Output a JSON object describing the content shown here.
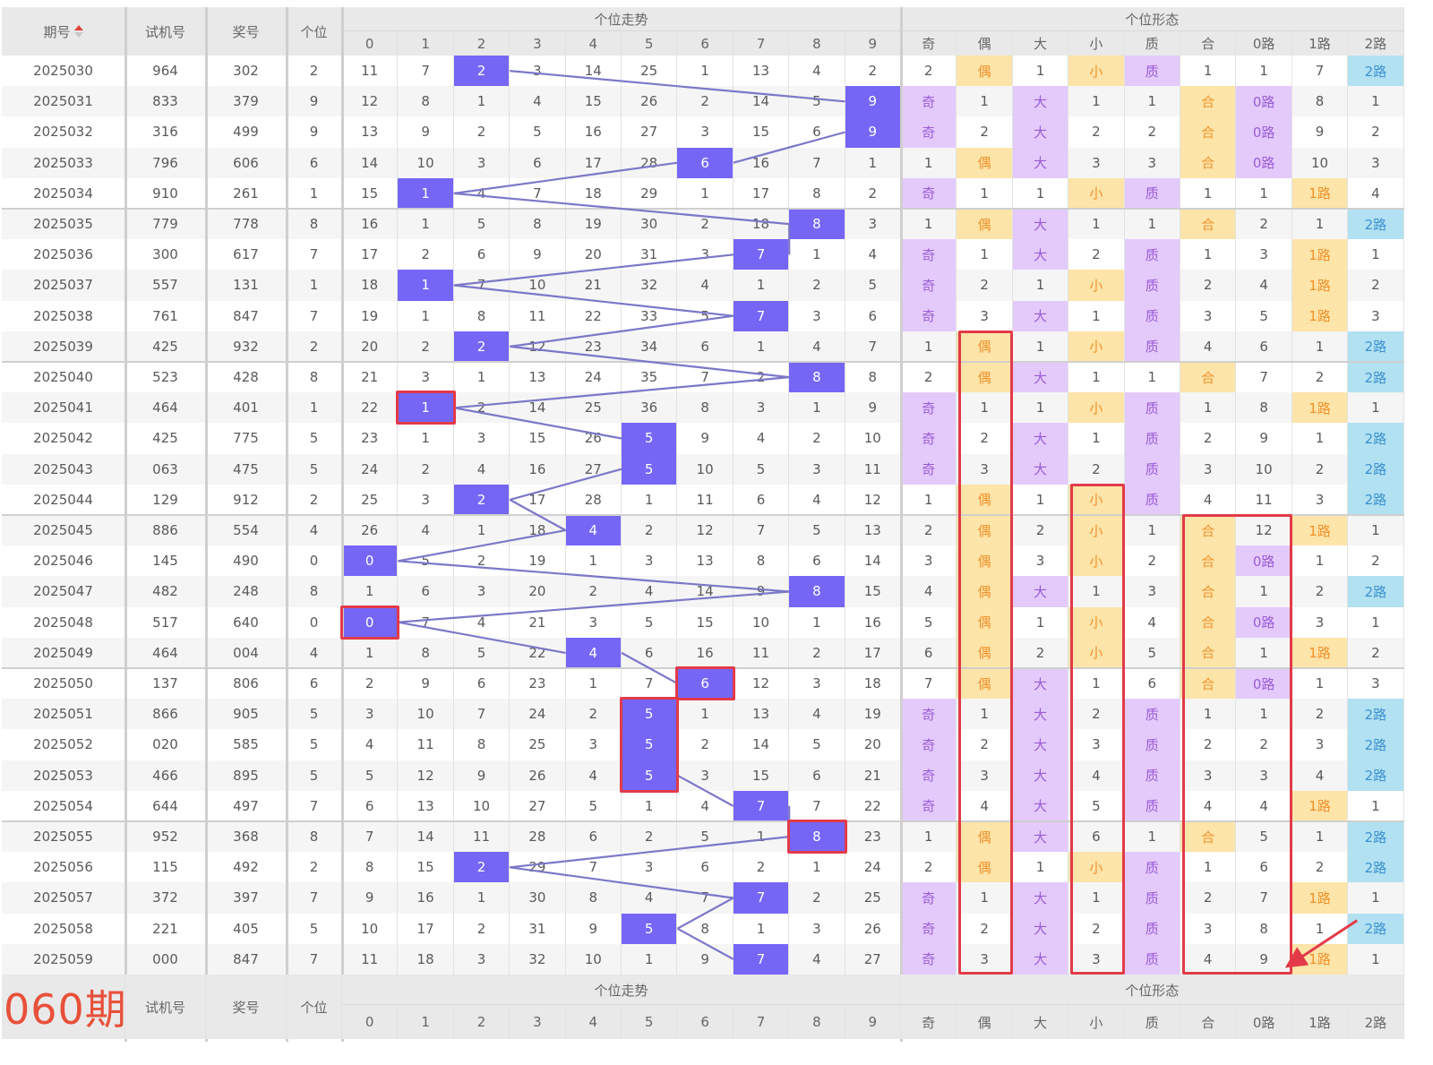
{
  "header": {
    "period_label": "期号",
    "trial_label": "试机号",
    "prize_label": "奖号",
    "unit_label": "个位",
    "trend_group": "个位走势",
    "form_group": "个位形态",
    "trend_cols": [
      "0",
      "1",
      "2",
      "3",
      "4",
      "5",
      "6",
      "7",
      "8",
      "9"
    ],
    "form_cols": [
      "奇",
      "偶",
      "大",
      "小",
      "质",
      "合",
      "0路",
      "1路",
      "2路"
    ],
    "sort_icon": "sort-ascending-icon"
  },
  "footer": {
    "next_period": "060期",
    "trial_label": "试机号",
    "prize_label": "奖号",
    "unit_label": "个位",
    "trend_group": "个位走势",
    "form_group": "个位形态",
    "trend_cols": [
      "0",
      "1",
      "2",
      "3",
      "4",
      "5",
      "6",
      "7",
      "8",
      "9"
    ],
    "form_cols": [
      "奇",
      "偶",
      "大",
      "小",
      "质",
      "合",
      "0路",
      "1路",
      "2路"
    ]
  },
  "colors": {
    "hit": "#7566f6",
    "trend_line": "#7b78c8",
    "annotation": "#e23a48",
    "form_col_colors": [
      "purple",
      "yellow",
      "purple",
      "yellow",
      "purple",
      "yellow",
      "purple",
      "yellow",
      "blue"
    ]
  },
  "rows": [
    {
      "period": "2025030",
      "trial": "964",
      "prize": "302",
      "unit": "2",
      "trend": [
        "11",
        "7",
        "2",
        "3",
        "14",
        "25",
        "1",
        "13",
        "4",
        "2"
      ],
      "form": [
        "2",
        "偶",
        "1",
        "小",
        "质",
        "1",
        "1",
        "7",
        "2路"
      ]
    },
    {
      "period": "2025031",
      "trial": "833",
      "prize": "379",
      "unit": "9",
      "trend": [
        "12",
        "8",
        "1",
        "4",
        "15",
        "26",
        "2",
        "14",
        "5",
        "9"
      ],
      "form": [
        "奇",
        "1",
        "大",
        "1",
        "1",
        "合",
        "0路",
        "8",
        "1"
      ]
    },
    {
      "period": "2025032",
      "trial": "316",
      "prize": "499",
      "unit": "9",
      "trend": [
        "13",
        "9",
        "2",
        "5",
        "16",
        "27",
        "3",
        "15",
        "6",
        "9"
      ],
      "form": [
        "奇",
        "2",
        "大",
        "2",
        "2",
        "合",
        "0路",
        "9",
        "2"
      ]
    },
    {
      "period": "2025033",
      "trial": "796",
      "prize": "606",
      "unit": "6",
      "trend": [
        "14",
        "10",
        "3",
        "6",
        "17",
        "28",
        "6",
        "16",
        "7",
        "1"
      ],
      "form": [
        "1",
        "偶",
        "大",
        "3",
        "3",
        "合",
        "0路",
        "10",
        "3"
      ]
    },
    {
      "period": "2025034",
      "trial": "910",
      "prize": "261",
      "unit": "1",
      "trend": [
        "15",
        "1",
        "4",
        "7",
        "18",
        "29",
        "1",
        "17",
        "8",
        "2"
      ],
      "form": [
        "奇",
        "1",
        "1",
        "小",
        "质",
        "1",
        "1",
        "1路",
        "4"
      ]
    },
    {
      "period": "2025035",
      "trial": "779",
      "prize": "778",
      "unit": "8",
      "trend": [
        "16",
        "1",
        "5",
        "8",
        "19",
        "30",
        "2",
        "18",
        "8",
        "3"
      ],
      "form": [
        "1",
        "偶",
        "大",
        "1",
        "1",
        "合",
        "2",
        "1",
        "2路"
      ]
    },
    {
      "period": "2025036",
      "trial": "300",
      "prize": "617",
      "unit": "7",
      "trend": [
        "17",
        "2",
        "6",
        "9",
        "20",
        "31",
        "3",
        "7",
        "1",
        "4"
      ],
      "form": [
        "奇",
        "1",
        "大",
        "2",
        "质",
        "1",
        "3",
        "1路",
        "1"
      ]
    },
    {
      "period": "2025037",
      "trial": "557",
      "prize": "131",
      "unit": "1",
      "trend": [
        "18",
        "1",
        "7",
        "10",
        "21",
        "32",
        "4",
        "1",
        "2",
        "5"
      ],
      "form": [
        "奇",
        "2",
        "1",
        "小",
        "质",
        "2",
        "4",
        "1路",
        "2"
      ]
    },
    {
      "period": "2025038",
      "trial": "761",
      "prize": "847",
      "unit": "7",
      "trend": [
        "19",
        "1",
        "8",
        "11",
        "22",
        "33",
        "5",
        "7",
        "3",
        "6"
      ],
      "form": [
        "奇",
        "3",
        "大",
        "1",
        "质",
        "3",
        "5",
        "1路",
        "3"
      ]
    },
    {
      "period": "2025039",
      "trial": "425",
      "prize": "932",
      "unit": "2",
      "trend": [
        "20",
        "2",
        "2",
        "12",
        "23",
        "34",
        "6",
        "1",
        "4",
        "7"
      ],
      "form": [
        "1",
        "偶",
        "1",
        "小",
        "质",
        "4",
        "6",
        "1",
        "2路"
      ]
    },
    {
      "period": "2025040",
      "trial": "523",
      "prize": "428",
      "unit": "8",
      "trend": [
        "21",
        "3",
        "1",
        "13",
        "24",
        "35",
        "7",
        "2",
        "8",
        "8"
      ],
      "form": [
        "2",
        "偶",
        "大",
        "1",
        "1",
        "合",
        "7",
        "2",
        "2路"
      ]
    },
    {
      "period": "2025041",
      "trial": "464",
      "prize": "401",
      "unit": "1",
      "trend": [
        "22",
        "1",
        "2",
        "14",
        "25",
        "36",
        "8",
        "3",
        "1",
        "9"
      ],
      "form": [
        "奇",
        "1",
        "1",
        "小",
        "质",
        "1",
        "8",
        "1路",
        "1"
      ]
    },
    {
      "period": "2025042",
      "trial": "425",
      "prize": "775",
      "unit": "5",
      "trend": [
        "23",
        "1",
        "3",
        "15",
        "26",
        "5",
        "9",
        "4",
        "2",
        "10"
      ],
      "form": [
        "奇",
        "2",
        "大",
        "1",
        "质",
        "2",
        "9",
        "1",
        "2路"
      ]
    },
    {
      "period": "2025043",
      "trial": "063",
      "prize": "475",
      "unit": "5",
      "trend": [
        "24",
        "2",
        "4",
        "16",
        "27",
        "5",
        "10",
        "5",
        "3",
        "11"
      ],
      "form": [
        "奇",
        "3",
        "大",
        "2",
        "质",
        "3",
        "10",
        "2",
        "2路"
      ]
    },
    {
      "period": "2025044",
      "trial": "129",
      "prize": "912",
      "unit": "2",
      "trend": [
        "25",
        "3",
        "2",
        "17",
        "28",
        "1",
        "11",
        "6",
        "4",
        "12"
      ],
      "form": [
        "1",
        "偶",
        "1",
        "小",
        "质",
        "4",
        "11",
        "3",
        "2路"
      ]
    },
    {
      "period": "2025045",
      "trial": "886",
      "prize": "554",
      "unit": "4",
      "trend": [
        "26",
        "4",
        "1",
        "18",
        "4",
        "2",
        "12",
        "7",
        "5",
        "13"
      ],
      "form": [
        "2",
        "偶",
        "2",
        "小",
        "1",
        "合",
        "12",
        "1路",
        "1"
      ]
    },
    {
      "period": "2025046",
      "trial": "145",
      "prize": "490",
      "unit": "0",
      "trend": [
        "0",
        "5",
        "2",
        "19",
        "1",
        "3",
        "13",
        "8",
        "6",
        "14"
      ],
      "form": [
        "3",
        "偶",
        "3",
        "小",
        "2",
        "合",
        "0路",
        "1",
        "2"
      ]
    },
    {
      "period": "2025047",
      "trial": "482",
      "prize": "248",
      "unit": "8",
      "trend": [
        "1",
        "6",
        "3",
        "20",
        "2",
        "4",
        "14",
        "9",
        "8",
        "15"
      ],
      "form": [
        "4",
        "偶",
        "大",
        "1",
        "3",
        "合",
        "1",
        "2",
        "2路"
      ]
    },
    {
      "period": "2025048",
      "trial": "517",
      "prize": "640",
      "unit": "0",
      "trend": [
        "0",
        "7",
        "4",
        "21",
        "3",
        "5",
        "15",
        "10",
        "1",
        "16"
      ],
      "form": [
        "5",
        "偶",
        "1",
        "小",
        "4",
        "合",
        "0路",
        "3",
        "1"
      ]
    },
    {
      "period": "2025049",
      "trial": "464",
      "prize": "004",
      "unit": "4",
      "trend": [
        "1",
        "8",
        "5",
        "22",
        "4",
        "6",
        "16",
        "11",
        "2",
        "17"
      ],
      "form": [
        "6",
        "偶",
        "2",
        "小",
        "5",
        "合",
        "1",
        "1路",
        "2"
      ]
    },
    {
      "period": "2025050",
      "trial": "137",
      "prize": "806",
      "unit": "6",
      "trend": [
        "2",
        "9",
        "6",
        "23",
        "1",
        "7",
        "6",
        "12",
        "3",
        "18"
      ],
      "form": [
        "7",
        "偶",
        "大",
        "1",
        "6",
        "合",
        "0路",
        "1",
        "3"
      ]
    },
    {
      "period": "2025051",
      "trial": "866",
      "prize": "905",
      "unit": "5",
      "trend": [
        "3",
        "10",
        "7",
        "24",
        "2",
        "5",
        "1",
        "13",
        "4",
        "19"
      ],
      "form": [
        "奇",
        "1",
        "大",
        "2",
        "质",
        "1",
        "1",
        "2",
        "2路"
      ]
    },
    {
      "period": "2025052",
      "trial": "020",
      "prize": "585",
      "unit": "5",
      "trend": [
        "4",
        "11",
        "8",
        "25",
        "3",
        "5",
        "2",
        "14",
        "5",
        "20"
      ],
      "form": [
        "奇",
        "2",
        "大",
        "3",
        "质",
        "2",
        "2",
        "3",
        "2路"
      ]
    },
    {
      "period": "2025053",
      "trial": "466",
      "prize": "895",
      "unit": "5",
      "trend": [
        "5",
        "12",
        "9",
        "26",
        "4",
        "5",
        "3",
        "15",
        "6",
        "21"
      ],
      "form": [
        "奇",
        "3",
        "大",
        "4",
        "质",
        "3",
        "3",
        "4",
        "2路"
      ]
    },
    {
      "period": "2025054",
      "trial": "644",
      "prize": "497",
      "unit": "7",
      "trend": [
        "6",
        "13",
        "10",
        "27",
        "5",
        "1",
        "4",
        "7",
        "7",
        "22"
      ],
      "form": [
        "奇",
        "4",
        "大",
        "5",
        "质",
        "4",
        "4",
        "1路",
        "1"
      ]
    },
    {
      "period": "2025055",
      "trial": "952",
      "prize": "368",
      "unit": "8",
      "trend": [
        "7",
        "14",
        "11",
        "28",
        "6",
        "2",
        "5",
        "1",
        "8",
        "23"
      ],
      "form": [
        "1",
        "偶",
        "大",
        "6",
        "1",
        "合",
        "5",
        "1",
        "2路"
      ]
    },
    {
      "period": "2025056",
      "trial": "115",
      "prize": "492",
      "unit": "2",
      "trend": [
        "8",
        "15",
        "2",
        "29",
        "7",
        "3",
        "6",
        "2",
        "1",
        "24"
      ],
      "form": [
        "2",
        "偶",
        "1",
        "小",
        "质",
        "1",
        "6",
        "2",
        "2路"
      ]
    },
    {
      "period": "2025057",
      "trial": "372",
      "prize": "397",
      "unit": "7",
      "trend": [
        "9",
        "16",
        "1",
        "30",
        "8",
        "4",
        "7",
        "7",
        "2",
        "25"
      ],
      "form": [
        "奇",
        "1",
        "大",
        "1",
        "质",
        "2",
        "7",
        "1路",
        "1"
      ]
    },
    {
      "period": "2025058",
      "trial": "221",
      "prize": "405",
      "unit": "5",
      "trend": [
        "10",
        "17",
        "2",
        "31",
        "9",
        "5",
        "8",
        "1",
        "3",
        "26"
      ],
      "form": [
        "奇",
        "2",
        "大",
        "2",
        "质",
        "3",
        "8",
        "1",
        "2路"
      ]
    },
    {
      "period": "2025059",
      "trial": "000",
      "prize": "847",
      "unit": "7",
      "trend": [
        "11",
        "18",
        "3",
        "32",
        "10",
        "1",
        "9",
        "7",
        "4",
        "27"
      ],
      "form": [
        "奇",
        "3",
        "大",
        "3",
        "质",
        "4",
        "9",
        "1路",
        "1"
      ]
    }
  ],
  "annotations": {
    "trend_boxes": [
      {
        "period": "2025041",
        "digit": 1
      },
      {
        "period": "2025048",
        "digit": 0
      },
      {
        "period": "2025050",
        "digit": 6
      },
      {
        "period_from": "2025051",
        "period_to": "2025053",
        "digit": 5
      },
      {
        "period": "2025055",
        "digit": 8
      }
    ],
    "form_boxes": [
      {
        "period_from": "2025039",
        "period_to": "2025059",
        "cols": [
          "偶"
        ]
      },
      {
        "period_from": "2025044",
        "period_to": "2025059",
        "cols": [
          "小"
        ]
      },
      {
        "period_from": "2025045",
        "period_to": "2025059",
        "cols": [
          "合",
          "0路"
        ]
      }
    ],
    "arrow": {
      "from": "2路",
      "to": "0路",
      "period_from": "2025058",
      "period_to": "2025059"
    }
  }
}
